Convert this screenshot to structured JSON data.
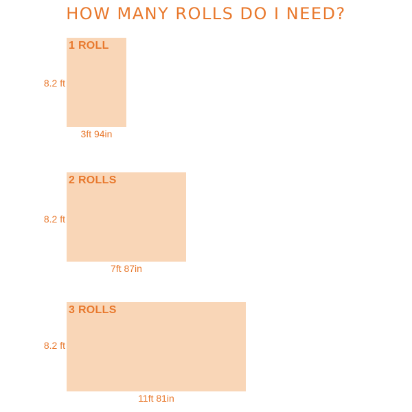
{
  "title": "HOW MANY ROLLS DO I NEED?",
  "colors": {
    "accent": "#e8782c",
    "panel_fill": "#f9d6b7",
    "background": "#ffffff"
  },
  "rolls": [
    {
      "label": "1 ROLL",
      "height": "8.2 ft",
      "width": "3ft 94in"
    },
    {
      "label": "2 ROLLS",
      "height": "8.2 ft",
      "width": "7ft 87in"
    },
    {
      "label": "3 ROLLS",
      "height": "8.2 ft",
      "width": "11ft 81in"
    }
  ]
}
